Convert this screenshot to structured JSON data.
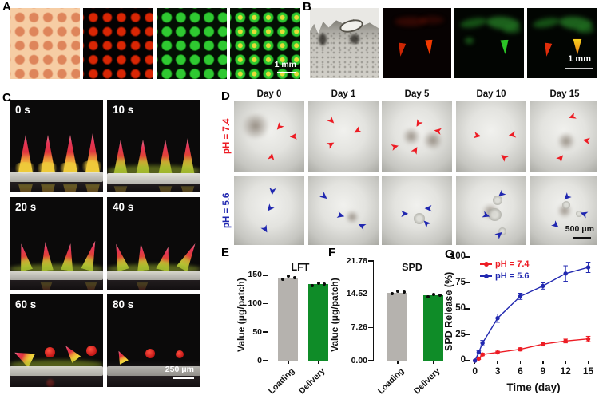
{
  "colors": {
    "accent_red": "#ed1c24",
    "accent_blue": "#2128b0",
    "bar_gray": "#b5b2ae",
    "bar_green": "#0f8c28"
  },
  "icons": {
    "arrow": "➤"
  },
  "panels": {
    "A": {
      "label": "A",
      "scale_bar": "1 mm"
    },
    "B": {
      "label": "B",
      "scale_bar": "1 mm"
    },
    "C": {
      "label": "C",
      "scale_bar": "250 μm",
      "timepoints": [
        "0 s",
        "10 s",
        "20 s",
        "40 s",
        "60 s",
        "80 s"
      ]
    },
    "D": {
      "label": "D",
      "scale_bar": "500 μm",
      "days": [
        "Day 0",
        "Day 1",
        "Day 5",
        "Day 10",
        "Day 15"
      ],
      "rows": [
        {
          "ph_label": "pH = 7.4"
        },
        {
          "ph_label": "pH = 5.6"
        }
      ]
    },
    "E": {
      "label": "E"
    },
    "F": {
      "label": "F"
    },
    "G": {
      "label": "G"
    }
  },
  "chart_data": [
    {
      "id": "LFT",
      "type": "bar",
      "title": "LFT",
      "ylabel": "Value (μg/patch)",
      "categories": [
        "Loading",
        "Delivery"
      ],
      "values": [
        146,
        134
      ],
      "point_overlays": [
        [
          143,
          148,
          146
        ],
        [
          131,
          136,
          134
        ]
      ],
      "yticks": [
        0,
        50,
        100,
        150
      ],
      "ytick_labels": [
        "0",
        "50",
        "100",
        "150"
      ],
      "ylim": [
        0,
        175
      ],
      "bar_colors": [
        "#b5b2ae",
        "#0f8c28"
      ],
      "grid": false
    },
    {
      "id": "SPD",
      "type": "bar",
      "title": "SPD",
      "ylabel": "Value (μg/patch)",
      "categories": [
        "Loading",
        "Delivery"
      ],
      "values": [
        14.9,
        14.3
      ],
      "point_overlays": [
        [
          14.7,
          15.1,
          14.9
        ],
        [
          14.0,
          14.5,
          14.3
        ]
      ],
      "yticks": [
        0,
        7.26,
        14.52,
        21.78
      ],
      "ytick_labels": [
        "0.00",
        "7.26",
        "14.52",
        "21.78"
      ],
      "ylim": [
        0,
        21.78
      ],
      "bar_colors": [
        "#b5b2ae",
        "#0f8c28"
      ],
      "grid": false
    },
    {
      "id": "release",
      "type": "line",
      "title": "",
      "xlabel": "Time (day)",
      "ylabel": "SPD Release (%)",
      "x": [
        0,
        0.5,
        1,
        3,
        6,
        9,
        12,
        15
      ],
      "series": [
        {
          "name": "pH = 7.4",
          "color": "#ed1c24",
          "values": [
            0,
            2,
            6,
            8,
            11,
            16,
            19,
            21
          ],
          "errors": [
            0,
            0.8,
            1.2,
            1.2,
            1.5,
            1.8,
            1.8,
            2.5
          ]
        },
        {
          "name": "pH = 5.6",
          "color": "#2128b0",
          "values": [
            0,
            8,
            17,
            41,
            62,
            72,
            84,
            90
          ],
          "errors": [
            0,
            1.5,
            2.5,
            4,
            3,
            3,
            7.5,
            5
          ]
        }
      ],
      "xticks": [
        0,
        3,
        6,
        9,
        12,
        15
      ],
      "xtick_labels": [
        "0",
        "3",
        "6",
        "9",
        "12",
        "15"
      ],
      "yticks": [
        0,
        25,
        50,
        75,
        100
      ],
      "ytick_labels": [
        "0",
        "25",
        "50",
        "75",
        "100"
      ],
      "xlim": [
        -0.6,
        16
      ],
      "ylim": [
        0,
        100
      ],
      "legend_position": "top-left",
      "grid": false
    }
  ]
}
